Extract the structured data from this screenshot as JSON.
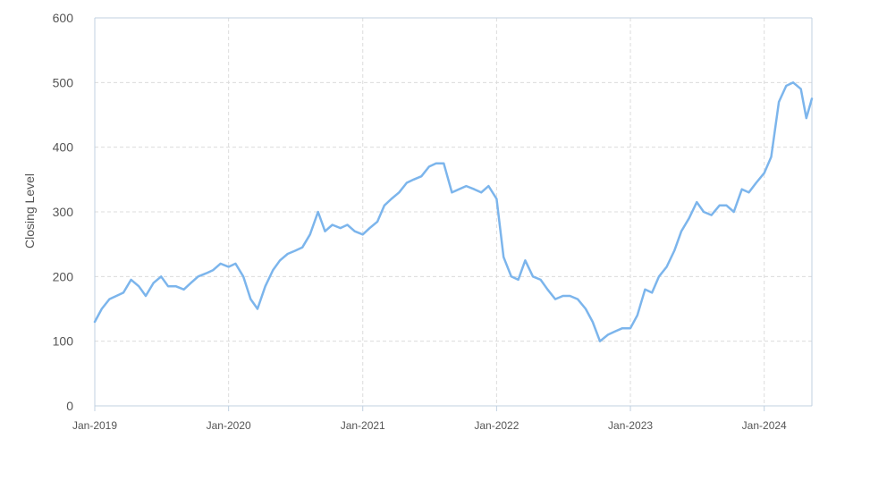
{
  "chart_data": {
    "type": "line",
    "title": "",
    "xlabel": "",
    "ylabel": "Closing Level",
    "ylim": [
      0,
      600
    ],
    "xlim": [
      "2019-01-01",
      "2024-05-10"
    ],
    "y_ticks": [
      "0",
      "100",
      "200",
      "300",
      "400",
      "500",
      "600"
    ],
    "x_ticks": [
      {
        "date": "2019-01-01",
        "label": "Jan-2019"
      },
      {
        "date": "2020-01-01",
        "label": "Jan-2020"
      },
      {
        "date": "2021-01-01",
        "label": "Jan-2021"
      },
      {
        "date": "2022-01-01",
        "label": "Jan-2022"
      },
      {
        "date": "2023-01-01",
        "label": "Jan-2023"
      },
      {
        "date": "2024-01-01",
        "label": "Jan-2024"
      }
    ],
    "grid": true,
    "line_color": "#7cb5ec",
    "series": [
      {
        "x": [
          "2019-01-01",
          "2019-01-20",
          "2019-02-10",
          "2019-03-01",
          "2019-03-20",
          "2019-04-10",
          "2019-05-01",
          "2019-05-20",
          "2019-06-10",
          "2019-07-01",
          "2019-07-20",
          "2019-08-10",
          "2019-09-01",
          "2019-09-20",
          "2019-10-10",
          "2019-11-01",
          "2019-11-20",
          "2019-12-10",
          "2020-01-01",
          "2020-01-20",
          "2020-02-10",
          "2020-03-01",
          "2020-03-20",
          "2020-04-10",
          "2020-05-01",
          "2020-05-20",
          "2020-06-10",
          "2020-07-01",
          "2020-07-20",
          "2020-08-10",
          "2020-09-01",
          "2020-09-20",
          "2020-10-10",
          "2020-11-01",
          "2020-11-20",
          "2020-12-10",
          "2021-01-01",
          "2021-01-20",
          "2021-02-10",
          "2021-03-01",
          "2021-03-20",
          "2021-04-10",
          "2021-05-01",
          "2021-05-20",
          "2021-06-10",
          "2021-07-01",
          "2021-07-20",
          "2021-08-10",
          "2021-09-01",
          "2021-09-20",
          "2021-10-10",
          "2021-11-01",
          "2021-11-20",
          "2021-12-10",
          "2022-01-01",
          "2022-01-20",
          "2022-02-10",
          "2022-03-01",
          "2022-03-20",
          "2022-04-10",
          "2022-05-01",
          "2022-05-20",
          "2022-06-10",
          "2022-07-01",
          "2022-07-20",
          "2022-08-10",
          "2022-09-01",
          "2022-09-20",
          "2022-10-10",
          "2022-11-01",
          "2022-11-20",
          "2022-12-10",
          "2023-01-01",
          "2023-01-20",
          "2023-02-10",
          "2023-03-01",
          "2023-03-20",
          "2023-04-10",
          "2023-05-01",
          "2023-05-20",
          "2023-06-10",
          "2023-07-01",
          "2023-07-20",
          "2023-08-10",
          "2023-09-01",
          "2023-09-20",
          "2023-10-10",
          "2023-11-01",
          "2023-11-20",
          "2023-12-10",
          "2024-01-01",
          "2024-01-20",
          "2024-02-10",
          "2024-03-01",
          "2024-03-20",
          "2024-04-10",
          "2024-04-25",
          "2024-05-10"
        ],
        "y": [
          130,
          150,
          165,
          170,
          175,
          195,
          185,
          170,
          190,
          200,
          185,
          185,
          180,
          190,
          200,
          205,
          210,
          220,
          215,
          220,
          200,
          165,
          150,
          185,
          210,
          225,
          235,
          240,
          245,
          265,
          300,
          270,
          280,
          275,
          280,
          270,
          265,
          275,
          285,
          310,
          320,
          330,
          345,
          350,
          355,
          370,
          375,
          375,
          330,
          335,
          340,
          335,
          330,
          340,
          320,
          230,
          200,
          195,
          225,
          200,
          195,
          180,
          165,
          170,
          170,
          165,
          150,
          130,
          100,
          110,
          115,
          120,
          120,
          140,
          180,
          175,
          200,
          215,
          240,
          270,
          290,
          315,
          300,
          295,
          310,
          310,
          300,
          335,
          330,
          345,
          360,
          385,
          470,
          495,
          500,
          490,
          445,
          475
        ]
      }
    ]
  }
}
